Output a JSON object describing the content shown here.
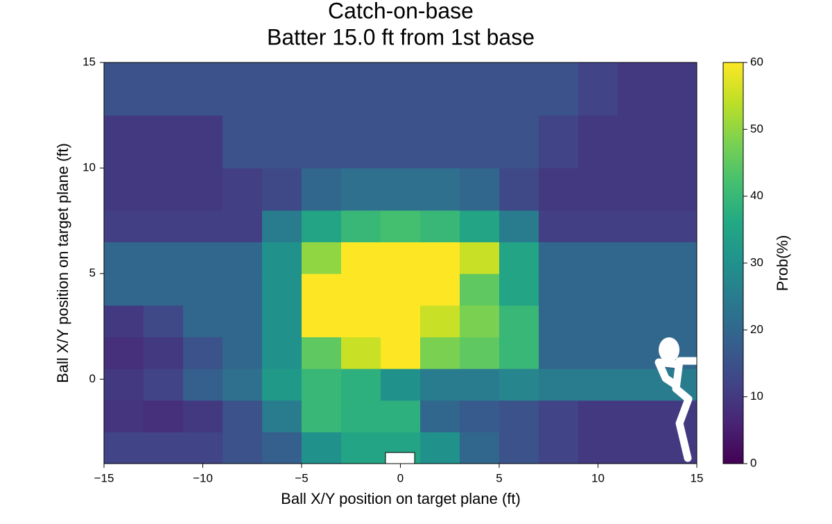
{
  "chart_data": {
    "type": "heatmap",
    "title": [
      "Catch-on-base",
      "Batter 15.0 ft from 1st base"
    ],
    "xlabel": "Ball X/Y position on target plane (ft)",
    "ylabel": "Ball X/Y position on target plane (ft)",
    "colorbar_label": "Prob(%)",
    "xlim": [
      -15,
      15
    ],
    "ylim": [
      -4,
      15
    ],
    "clim": [
      0,
      60
    ],
    "xticks": [
      {
        "value": -15,
        "label": "−15"
      },
      {
        "value": -10,
        "label": "−10"
      },
      {
        "value": -5,
        "label": "−5"
      },
      0,
      5,
      10,
      15
    ],
    "yticks": [
      0,
      5,
      10,
      15
    ],
    "cticks": [
      0,
      10,
      20,
      30,
      40,
      50,
      60
    ],
    "colorscale": [
      "#440154",
      "#482475",
      "#414487",
      "#355f8d",
      "#2a788e",
      "#21918c",
      "#22a884",
      "#44bf70",
      "#7ad151",
      "#bddf26",
      "#fde725"
    ],
    "x_edges": [
      -15,
      -13,
      -11,
      -9,
      -7,
      -5,
      -3,
      -1,
      1,
      3,
      5,
      7,
      9,
      11,
      13,
      15
    ],
    "y_edges": [
      -4,
      -2.5,
      -1,
      0.5,
      2,
      3.5,
      5,
      6.5,
      8,
      10,
      12.5,
      15
    ],
    "z": [
      [
        12,
        12,
        12,
        15,
        18,
        30,
        35,
        35,
        30,
        20,
        15,
        12,
        10,
        10,
        10
      ],
      [
        9,
        8,
        10,
        15,
        25,
        40,
        38,
        38,
        20,
        17,
        15,
        12,
        10,
        10,
        10
      ],
      [
        10,
        12,
        18,
        22,
        32,
        40,
        38,
        30,
        25,
        25,
        27,
        25,
        25,
        25,
        25
      ],
      [
        8,
        10,
        15,
        20,
        30,
        45,
        55,
        60,
        48,
        45,
        40,
        20,
        20,
        20,
        20
      ],
      [
        10,
        13,
        20,
        20,
        30,
        60,
        60,
        60,
        55,
        48,
        40,
        20,
        20,
        20,
        20
      ],
      [
        20,
        20,
        20,
        20,
        30,
        60,
        60,
        60,
        60,
        45,
        35,
        20,
        20,
        20,
        20
      ],
      [
        20,
        20,
        20,
        20,
        30,
        50,
        60,
        60,
        60,
        55,
        35,
        20,
        20,
        20,
        20
      ],
      [
        11,
        11,
        11,
        11,
        25,
        35,
        40,
        42,
        40,
        35,
        25,
        11,
        11,
        11,
        11
      ],
      [
        10,
        10,
        10,
        11,
        13,
        20,
        22,
        22,
        22,
        20,
        13,
        10,
        10,
        10,
        10
      ],
      [
        10,
        10,
        10,
        15,
        15,
        15,
        15,
        15,
        15,
        15,
        15,
        12,
        10,
        10,
        10
      ],
      [
        15,
        15,
        15,
        15,
        15,
        15,
        15,
        15,
        15,
        15,
        15,
        15,
        12,
        10,
        10
      ]
    ]
  }
}
